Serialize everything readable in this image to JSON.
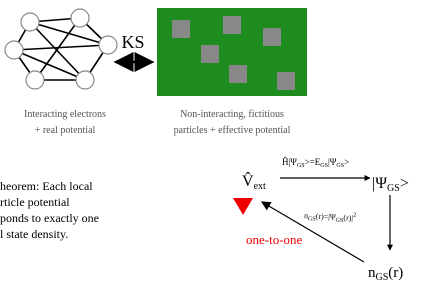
{
  "kohn_sham": {
    "label": "KS",
    "left_caption": [
      "Interacting electrons",
      "+ real potential"
    ],
    "right_caption": [
      "Non-interacting, fictitious",
      "particles + effective potential"
    ]
  },
  "theorem": [
    "heorem: Each local",
    "rticle potential",
    "ponds to exactly one",
    "l state density."
  ],
  "mapping": {
    "potential": [
      "V̂",
      "ext"
    ],
    "equation": [
      "Ĥ|Ψ",
      "GS",
      ">=E",
      "GS",
      "|Ψ",
      "GS",
      ">"
    ],
    "ground_state": [
      "|Ψ",
      "GS",
      ">"
    ],
    "density_relation": [
      "n",
      "GS",
      "(r)=|Ψ",
      "GS",
      "(r)|",
      "2"
    ],
    "density": [
      "n",
      "GS",
      "(r)"
    ],
    "relation": "one-to-one"
  }
}
